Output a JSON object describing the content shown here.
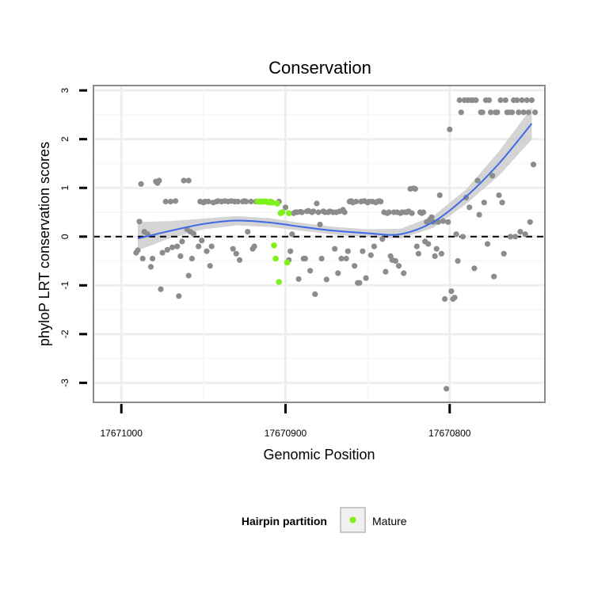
{
  "chart_data": {
    "type": "scatter",
    "title": "Conservation",
    "xlabel": "Genomic Position",
    "ylabel": "phyloP LRT conservation scores",
    "x_reversed": true,
    "xlim": [
      17671017,
      17670742
    ],
    "ylim": [
      -3.4,
      3.1
    ],
    "x_ticks": [
      17671000,
      17670900,
      17670800
    ],
    "x_tick_labels": [
      "17671000",
      "17670900",
      "17670800"
    ],
    "y_ticks": [
      3,
      2,
      1,
      0,
      -1,
      -2,
      -3
    ],
    "y_tick_labels": [
      "3",
      "2",
      "1",
      "0",
      "-1",
      "-2",
      "-3"
    ],
    "grid": true,
    "reference_line": {
      "y": 0,
      "style": "dashed"
    },
    "legend": {
      "title": "Hairpin partition",
      "placement": "bottom",
      "entries": [
        {
          "label": "Mature",
          "color": "#7ef01a"
        }
      ]
    },
    "colors": {
      "other": "#8c8c8c",
      "mature": "#7ef01a",
      "smooth": "#3e6ae6",
      "band": "#cccccc",
      "panel_border": "#8a8a8a"
    },
    "series": [
      {
        "points": [
          [
            17670989,
            0.31
          ],
          [
            17670988,
            1.08
          ],
          [
            17670991,
            -0.33
          ],
          [
            17670990,
            -0.28
          ],
          [
            17670987,
            -0.45
          ],
          [
            17670986,
            0.1
          ],
          [
            17670984,
            0.05
          ],
          [
            17670982,
            -0.62
          ],
          [
            17670981,
            -0.45
          ],
          [
            17670979,
            1.13
          ],
          [
            17670978,
            1.1
          ],
          [
            17670977,
            1.15
          ],
          [
            17670976,
            -1.08
          ],
          [
            17670975,
            -0.33
          ],
          [
            17670973,
            0.72
          ],
          [
            17670972,
            -0.27
          ],
          [
            17670970,
            0.72
          ],
          [
            17670969,
            -0.22
          ],
          [
            17670967,
            0.73
          ],
          [
            17670966,
            -0.2
          ],
          [
            17670965,
            -1.22
          ],
          [
            17670964,
            -0.4
          ],
          [
            17670963,
            -0.1
          ],
          [
            17670962,
            1.15
          ],
          [
            17670960,
            0.15
          ],
          [
            17670959,
            1.15
          ],
          [
            17670959,
            -0.8
          ],
          [
            17670958,
            0.1
          ],
          [
            17670957,
            -0.45
          ],
          [
            17670956,
            0.06
          ],
          [
            17670953,
            -0.2
          ],
          [
            17670952,
            0.72
          ],
          [
            17670951,
            -0.08
          ],
          [
            17670950,
            0.7
          ],
          [
            17670949,
            0.72
          ],
          [
            17670948,
            -0.3
          ],
          [
            17670947,
            0.72
          ],
          [
            17670946,
            -0.6
          ],
          [
            17670945,
            -0.2
          ],
          [
            17670944,
            0.7
          ],
          [
            17670942,
            0.72
          ],
          [
            17670941,
            0.73
          ],
          [
            17670939,
            0.72
          ],
          [
            17670937,
            0.73
          ],
          [
            17670935,
            0.72
          ],
          [
            17670933,
            0.73
          ],
          [
            17670932,
            -0.25
          ],
          [
            17670931,
            0.72
          ],
          [
            17670930,
            -0.35
          ],
          [
            17670929,
            0.72
          ],
          [
            17670928,
            -0.48
          ],
          [
            17670926,
            0.72
          ],
          [
            17670925,
            0.73
          ],
          [
            17670924,
            0.72
          ],
          [
            17670923,
            0.1
          ],
          [
            17670921,
            0.72
          ],
          [
            17670920,
            -0.25
          ],
          [
            17670919,
            -0.2
          ],
          [
            17670918,
            0.72
          ],
          [
            17670904,
            0.72
          ],
          [
            17670902,
            0.5
          ],
          [
            17670900,
            0.6
          ],
          [
            17670898,
            -0.48
          ],
          [
            17670897,
            -0.3
          ],
          [
            17670896,
            0.05
          ],
          [
            17670895,
            0.48
          ],
          [
            17670894,
            0.5
          ],
          [
            17670893,
            0.5
          ],
          [
            17670892,
            -0.87
          ],
          [
            17670891,
            0.51
          ],
          [
            17670890,
            0.5
          ],
          [
            17670889,
            -0.45
          ],
          [
            17670888,
            -0.45
          ],
          [
            17670887,
            0.52
          ],
          [
            17670886,
            0.53
          ],
          [
            17670885,
            -0.7
          ],
          [
            17670884,
            0.5
          ],
          [
            17670883,
            0.52
          ],
          [
            17670882,
            -1.18
          ],
          [
            17670881,
            0.68
          ],
          [
            17670880,
            0.5
          ],
          [
            17670879,
            0.25
          ],
          [
            17670878,
            -0.45
          ],
          [
            17670877,
            0.52
          ],
          [
            17670876,
            0.5
          ],
          [
            17670875,
            -0.88
          ],
          [
            17670874,
            0.5
          ],
          [
            17670873,
            0.52
          ],
          [
            17670871,
            0.5
          ],
          [
            17670870,
            -0.25
          ],
          [
            17670869,
            0.5
          ],
          [
            17670868,
            -0.75
          ],
          [
            17670867,
            0.52
          ],
          [
            17670866,
            -0.45
          ],
          [
            17670865,
            0.55
          ],
          [
            17670864,
            0.5
          ],
          [
            17670863,
            -0.45
          ],
          [
            17670862,
            -0.3
          ],
          [
            17670861,
            0.72
          ],
          [
            17670860,
            0.73
          ],
          [
            17670859,
            0.7
          ],
          [
            17670858,
            -0.6
          ],
          [
            17670857,
            0.72
          ],
          [
            17670856,
            -0.95
          ],
          [
            17670855,
            -0.95
          ],
          [
            17670854,
            0.72
          ],
          [
            17670853,
            -0.3
          ],
          [
            17670852,
            0.73
          ],
          [
            17670851,
            -0.85
          ],
          [
            17670850,
            0.7
          ],
          [
            17670849,
            0.72
          ],
          [
            17670848,
            -0.38
          ],
          [
            17670847,
            0.72
          ],
          [
            17670846,
            -0.2
          ],
          [
            17670845,
            0.7
          ],
          [
            17670844,
            0.72
          ],
          [
            17670843,
            0.73
          ],
          [
            17670842,
            0.72
          ],
          [
            17670841,
            -0.05
          ],
          [
            17670840,
            0.5
          ],
          [
            17670839,
            -0.72
          ],
          [
            17670838,
            0.48
          ],
          [
            17670837,
            0.5
          ],
          [
            17670836,
            -0.4
          ],
          [
            17670835,
            -0.48
          ],
          [
            17670834,
            0.5
          ],
          [
            17670833,
            -0.5
          ],
          [
            17670832,
            0.5
          ],
          [
            17670831,
            -0.6
          ],
          [
            17670830,
            0.48
          ],
          [
            17670829,
            0.5
          ],
          [
            17670828,
            -0.75
          ],
          [
            17670827,
            0.5
          ],
          [
            17670826,
            0.5
          ],
          [
            17670825,
            0.52
          ],
          [
            17670824,
            0.98
          ],
          [
            17670823,
            0.48
          ],
          [
            17670822,
            0.99
          ],
          [
            17670821,
            0.98
          ],
          [
            17670820,
            -0.2
          ],
          [
            17670819,
            -0.35
          ],
          [
            17670818,
            0.5
          ],
          [
            17670817,
            0.48
          ],
          [
            17670816,
            0.5
          ],
          [
            17670815,
            -0.1
          ],
          [
            17670814,
            0.3
          ],
          [
            17670813,
            -0.15
          ],
          [
            17670812,
            0.35
          ],
          [
            17670811,
            0.4
          ],
          [
            17670810,
            0.3
          ],
          [
            17670809,
            -0.4
          ],
          [
            17670808,
            -0.25
          ],
          [
            17670807,
            0.3
          ],
          [
            17670806,
            0.85
          ],
          [
            17670805,
            -0.35
          ],
          [
            17670804,
            0.32
          ],
          [
            17670803,
            -1.28
          ],
          [
            17670802,
            -3.12
          ],
          [
            17670801,
            0.3
          ],
          [
            17670800,
            2.2
          ],
          [
            17670799,
            -1.12
          ],
          [
            17670798,
            -1.28
          ],
          [
            17670797,
            -1.25
          ],
          [
            17670796,
            0.05
          ],
          [
            17670795,
            -0.5
          ],
          [
            17670794,
            2.8
          ],
          [
            17670793,
            2.55
          ],
          [
            17670792,
            0.0
          ],
          [
            17670791,
            2.8
          ],
          [
            17670790,
            0.8
          ],
          [
            17670789,
            2.8
          ],
          [
            17670788,
            0.6
          ],
          [
            17670787,
            2.8
          ],
          [
            17670786,
            2.8
          ],
          [
            17670785,
            -0.65
          ],
          [
            17670784,
            2.8
          ],
          [
            17670783,
            1.15
          ],
          [
            17670782,
            0.45
          ],
          [
            17670781,
            2.55
          ],
          [
            17670780,
            2.55
          ],
          [
            17670779,
            0.7
          ],
          [
            17670778,
            2.8
          ],
          [
            17670777,
            -0.15
          ],
          [
            17670776,
            2.8
          ],
          [
            17670775,
            2.55
          ],
          [
            17670774,
            1.25
          ],
          [
            17670773,
            -0.82
          ],
          [
            17670772,
            2.55
          ],
          [
            17670771,
            2.55
          ],
          [
            17670770,
            0.85
          ],
          [
            17670769,
            2.8
          ],
          [
            17670768,
            0.7
          ],
          [
            17670767,
            -0.35
          ],
          [
            17670766,
            2.8
          ],
          [
            17670765,
            2.55
          ],
          [
            17670764,
            2.55
          ],
          [
            17670763,
            0.0
          ],
          [
            17670762,
            2.55
          ],
          [
            17670761,
            2.8
          ],
          [
            17670760,
            0.0
          ],
          [
            17670759,
            2.8
          ],
          [
            17670758,
            2.55
          ],
          [
            17670757,
            0.1
          ],
          [
            17670756,
            2.8
          ],
          [
            17670755,
            2.55
          ],
          [
            17670754,
            0.05
          ],
          [
            17670753,
            2.8
          ],
          [
            17670752,
            2.55
          ],
          [
            17670751,
            0.3
          ],
          [
            17670750,
            2.8
          ],
          [
            17670749,
            1.48
          ],
          [
            17670748,
            2.55
          ]
        ]
      },
      {
        "name": "Mature",
        "points": [
          [
            17670917,
            0.72
          ],
          [
            17670916,
            0.72
          ],
          [
            17670915,
            0.72
          ],
          [
            17670914,
            0.72
          ],
          [
            17670913,
            0.72
          ],
          [
            17670912,
            0.72
          ],
          [
            17670911,
            0.71
          ],
          [
            17670910,
            0.7
          ],
          [
            17670909,
            0.72
          ],
          [
            17670908,
            0.7
          ],
          [
            17670907,
            -0.18
          ],
          [
            17670906,
            -0.45
          ],
          [
            17670905,
            0.68
          ],
          [
            17670904,
            -0.93
          ],
          [
            17670903,
            0.48
          ],
          [
            17670902,
            0.5
          ],
          [
            17670899,
            -0.53
          ],
          [
            17670898,
            0.48
          ]
        ]
      }
    ],
    "smooth_line": {
      "x": [
        17670990,
        17670970,
        17670950,
        17670930,
        17670910,
        17670890,
        17670870,
        17670850,
        17670830,
        17670810,
        17670790,
        17670770,
        17670750
      ],
      "y": [
        -0.04,
        0.12,
        0.26,
        0.33,
        0.29,
        0.2,
        0.12,
        0.07,
        0.05,
        0.3,
        0.82,
        1.5,
        2.32
      ]
    },
    "smooth_band": {
      "upper": [
        0.3,
        0.32,
        0.37,
        0.42,
        0.38,
        0.28,
        0.2,
        0.15,
        0.16,
        0.42,
        0.97,
        1.75,
        2.65
      ],
      "lower": [
        -0.28,
        -0.03,
        0.15,
        0.23,
        0.2,
        0.12,
        0.04,
        -0.01,
        -0.04,
        0.18,
        0.67,
        1.25,
        1.99
      ]
    }
  }
}
